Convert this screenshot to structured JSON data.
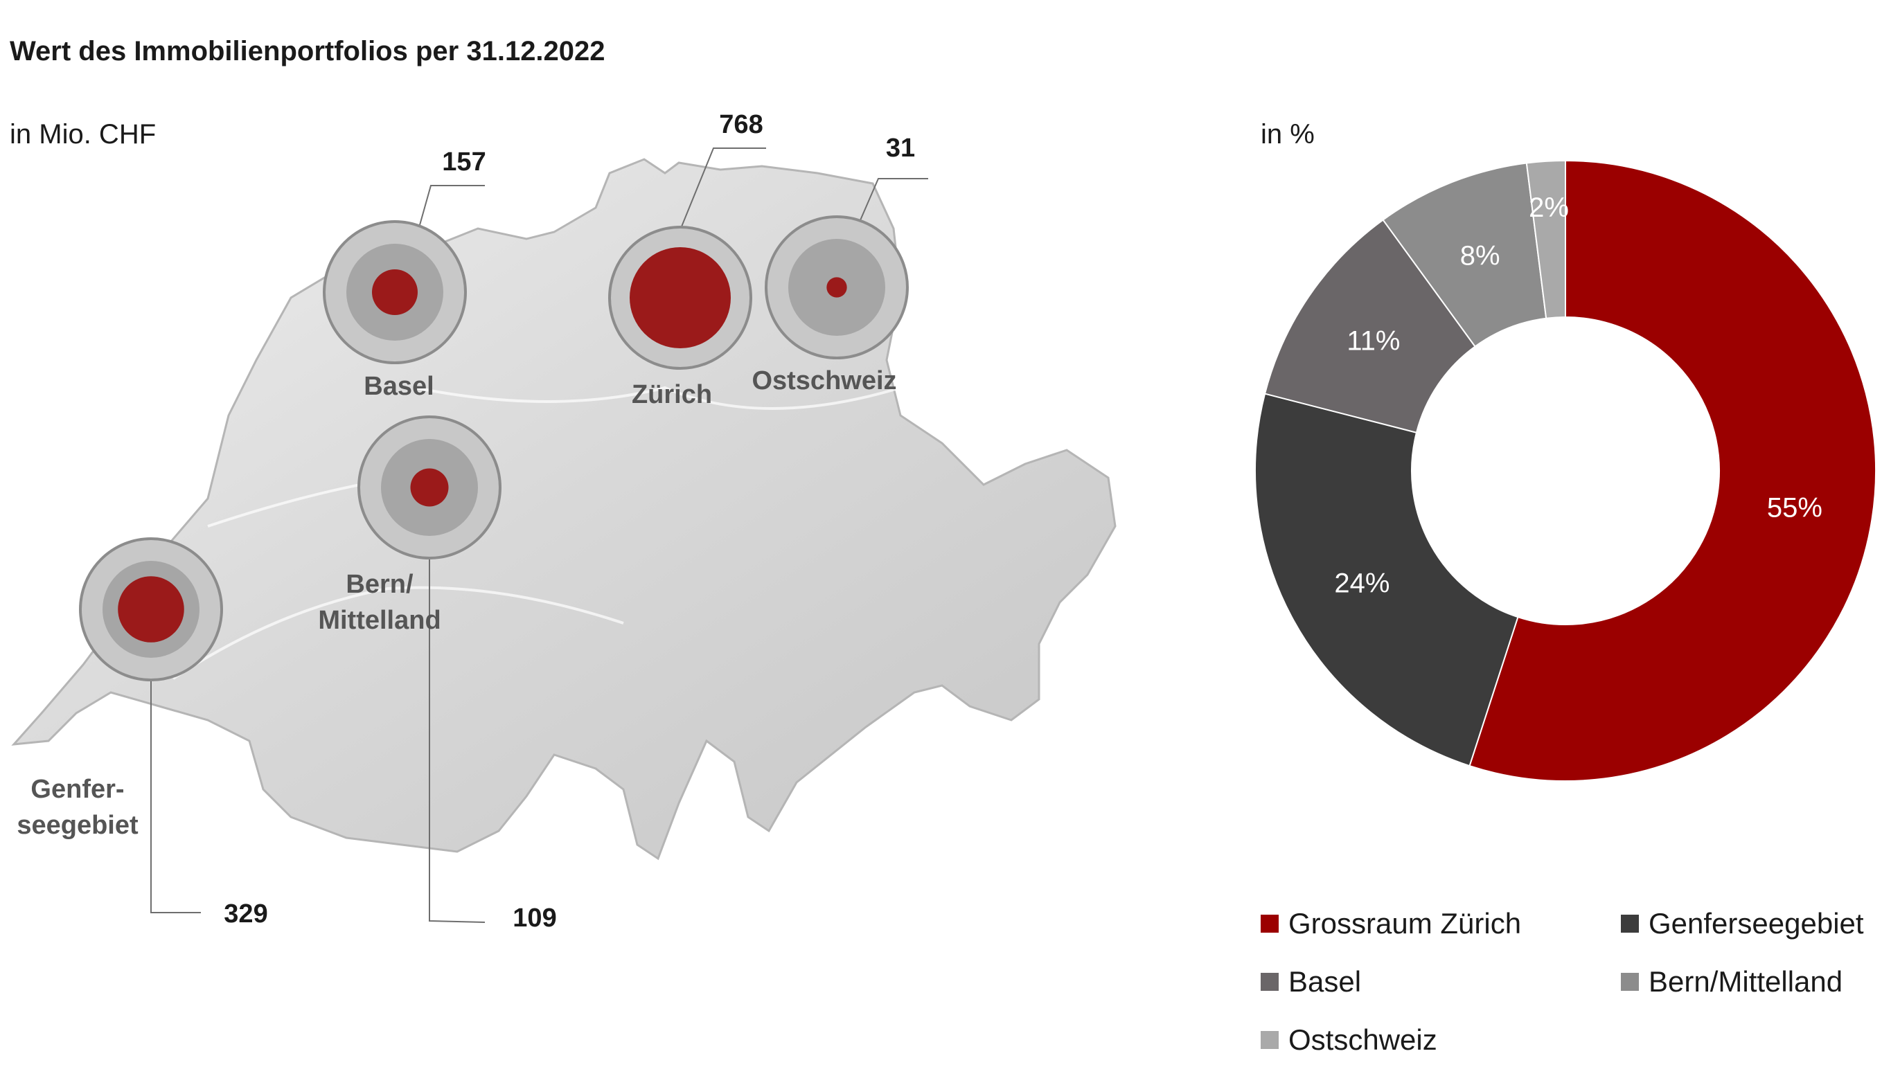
{
  "title": "Wert des Immobilienportfolios per 31.12.2022",
  "map": {
    "unit": "in Mio. CHF",
    "regions": [
      {
        "label": "Basel",
        "value": "157"
      },
      {
        "label": "Zürich",
        "value": "768"
      },
      {
        "label": "Ostschweiz",
        "value": "31"
      },
      {
        "label": "Bern/\nMittelland",
        "value": "109"
      },
      {
        "label": "Genfer-\nseegebiet",
        "value": "329"
      }
    ]
  },
  "donut": {
    "unit": "in %"
  },
  "chart_data": [
    {
      "type": "bubble-map",
      "unit": "in Mio. CHF",
      "categories": [
        "Basel",
        "Zürich",
        "Ostschweiz",
        "Bern/Mittelland",
        "Genferseegebiet"
      ],
      "values": [
        157,
        768,
        31,
        109,
        329
      ]
    },
    {
      "type": "pie",
      "donut": true,
      "unit": "in %",
      "categories": [
        "Grossraum Zürich",
        "Genferseegebiet",
        "Basel",
        "Bern/Mittelland",
        "Ostschweiz"
      ],
      "values": [
        55,
        24,
        11,
        8,
        2
      ],
      "labels": [
        "55%",
        "24%",
        "11%",
        "8%",
        "2%"
      ],
      "colors": [
        "#9b0000",
        "#3c3c3c",
        "#6a6668",
        "#8c8c8c",
        "#a9a9a9"
      ],
      "legend": "bottom"
    }
  ]
}
